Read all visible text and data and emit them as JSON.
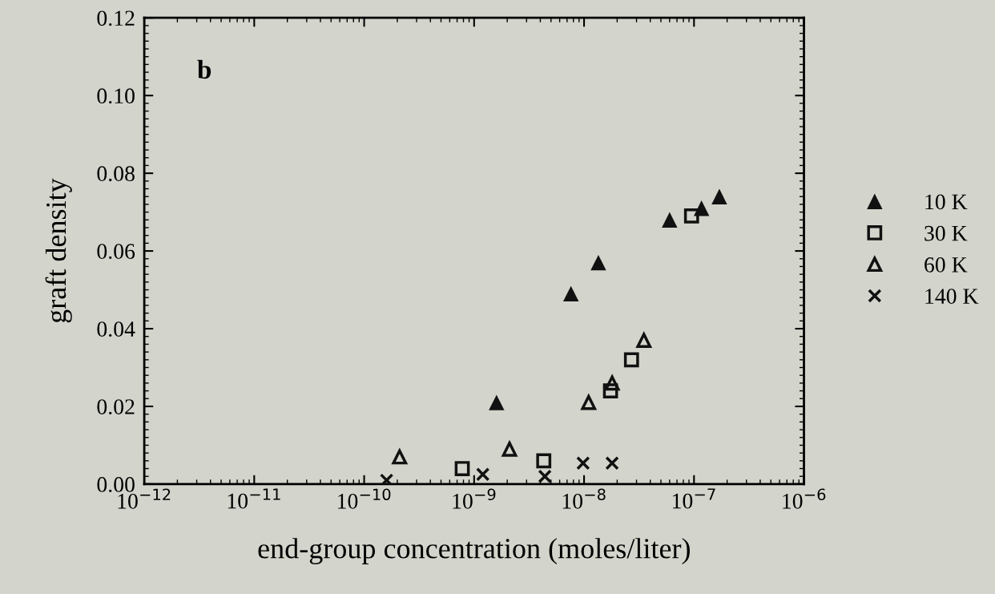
{
  "chart_data": {
    "type": "scatter",
    "xlabel": "end-group concentration (moles/liter)",
    "ylabel": "graft density",
    "log": "x",
    "xlim": [
      1e-12,
      1e-06
    ],
    "xticks": [
      {
        "value": 1e-12,
        "label": "10$^{−12}$"
      },
      {
        "value": 1e-11,
        "label": "10$^{−11}$"
      },
      {
        "value": 1e-10,
        "label": "10$^{−10}$"
      },
      {
        "value": 1e-09,
        "label": "10$^{−9}$"
      },
      {
        "value": 1e-08,
        "label": "10$^{−8}$"
      },
      {
        "value": 1e-07,
        "label": "10$^{−7}$"
      },
      {
        "value": 1e-06,
        "label": "10$^{−6}$"
      }
    ],
    "ylim": [
      0,
      0.12
    ],
    "yticks": [
      {
        "value": 0,
        "label": "0.00"
      },
      {
        "value": 0.02,
        "label": "0.02"
      },
      {
        "value": 0.04,
        "label": "0.04"
      },
      {
        "value": 0.06,
        "label": "0.06"
      },
      {
        "value": 0.08,
        "label": "0.08"
      },
      {
        "value": 0.1,
        "label": "0.10"
      },
      {
        "value": 0.12,
        "label": "0.12"
      }
    ],
    "grid": false,
    "legend": "right",
    "annotations": [
      "b"
    ],
    "series": [
      {
        "name": "10 K",
        "color": "#111111",
        "marker": "triangle",
        "x": [
          1.6e-09,
          7.6e-09,
          1.35e-08,
          6e-08,
          1.17e-07,
          1.7e-07
        ],
        "values": [
          0.021,
          0.049,
          0.057,
          0.068,
          0.071,
          0.074
        ]
      },
      {
        "name": "30 K",
        "color": "#111111",
        "marker": "square",
        "x": [
          7.8e-10,
          4.3e-09,
          1.74e-08,
          2.7e-08,
          9.5e-08
        ],
        "values": [
          0.004,
          0.006,
          0.024,
          0.032,
          0.069
        ]
      },
      {
        "name": "60 K",
        "color": "#111111",
        "marker": "triangle",
        "x": [
          2.1e-10,
          2.1e-09,
          1.1e-08,
          1.8e-08,
          3.5e-08
        ],
        "values": [
          0.007,
          0.009,
          0.021,
          0.026,
          0.037
        ]
      },
      {
        "name": "140 K",
        "color": "#111111",
        "marker": "cross",
        "x": [
          1.6e-10,
          1.2e-09,
          4.4e-09,
          9.8e-09,
          1.8e-08
        ],
        "values": [
          0.001,
          0.0025,
          0.002,
          0.0054,
          0.0054
        ]
      }
    ]
  }
}
